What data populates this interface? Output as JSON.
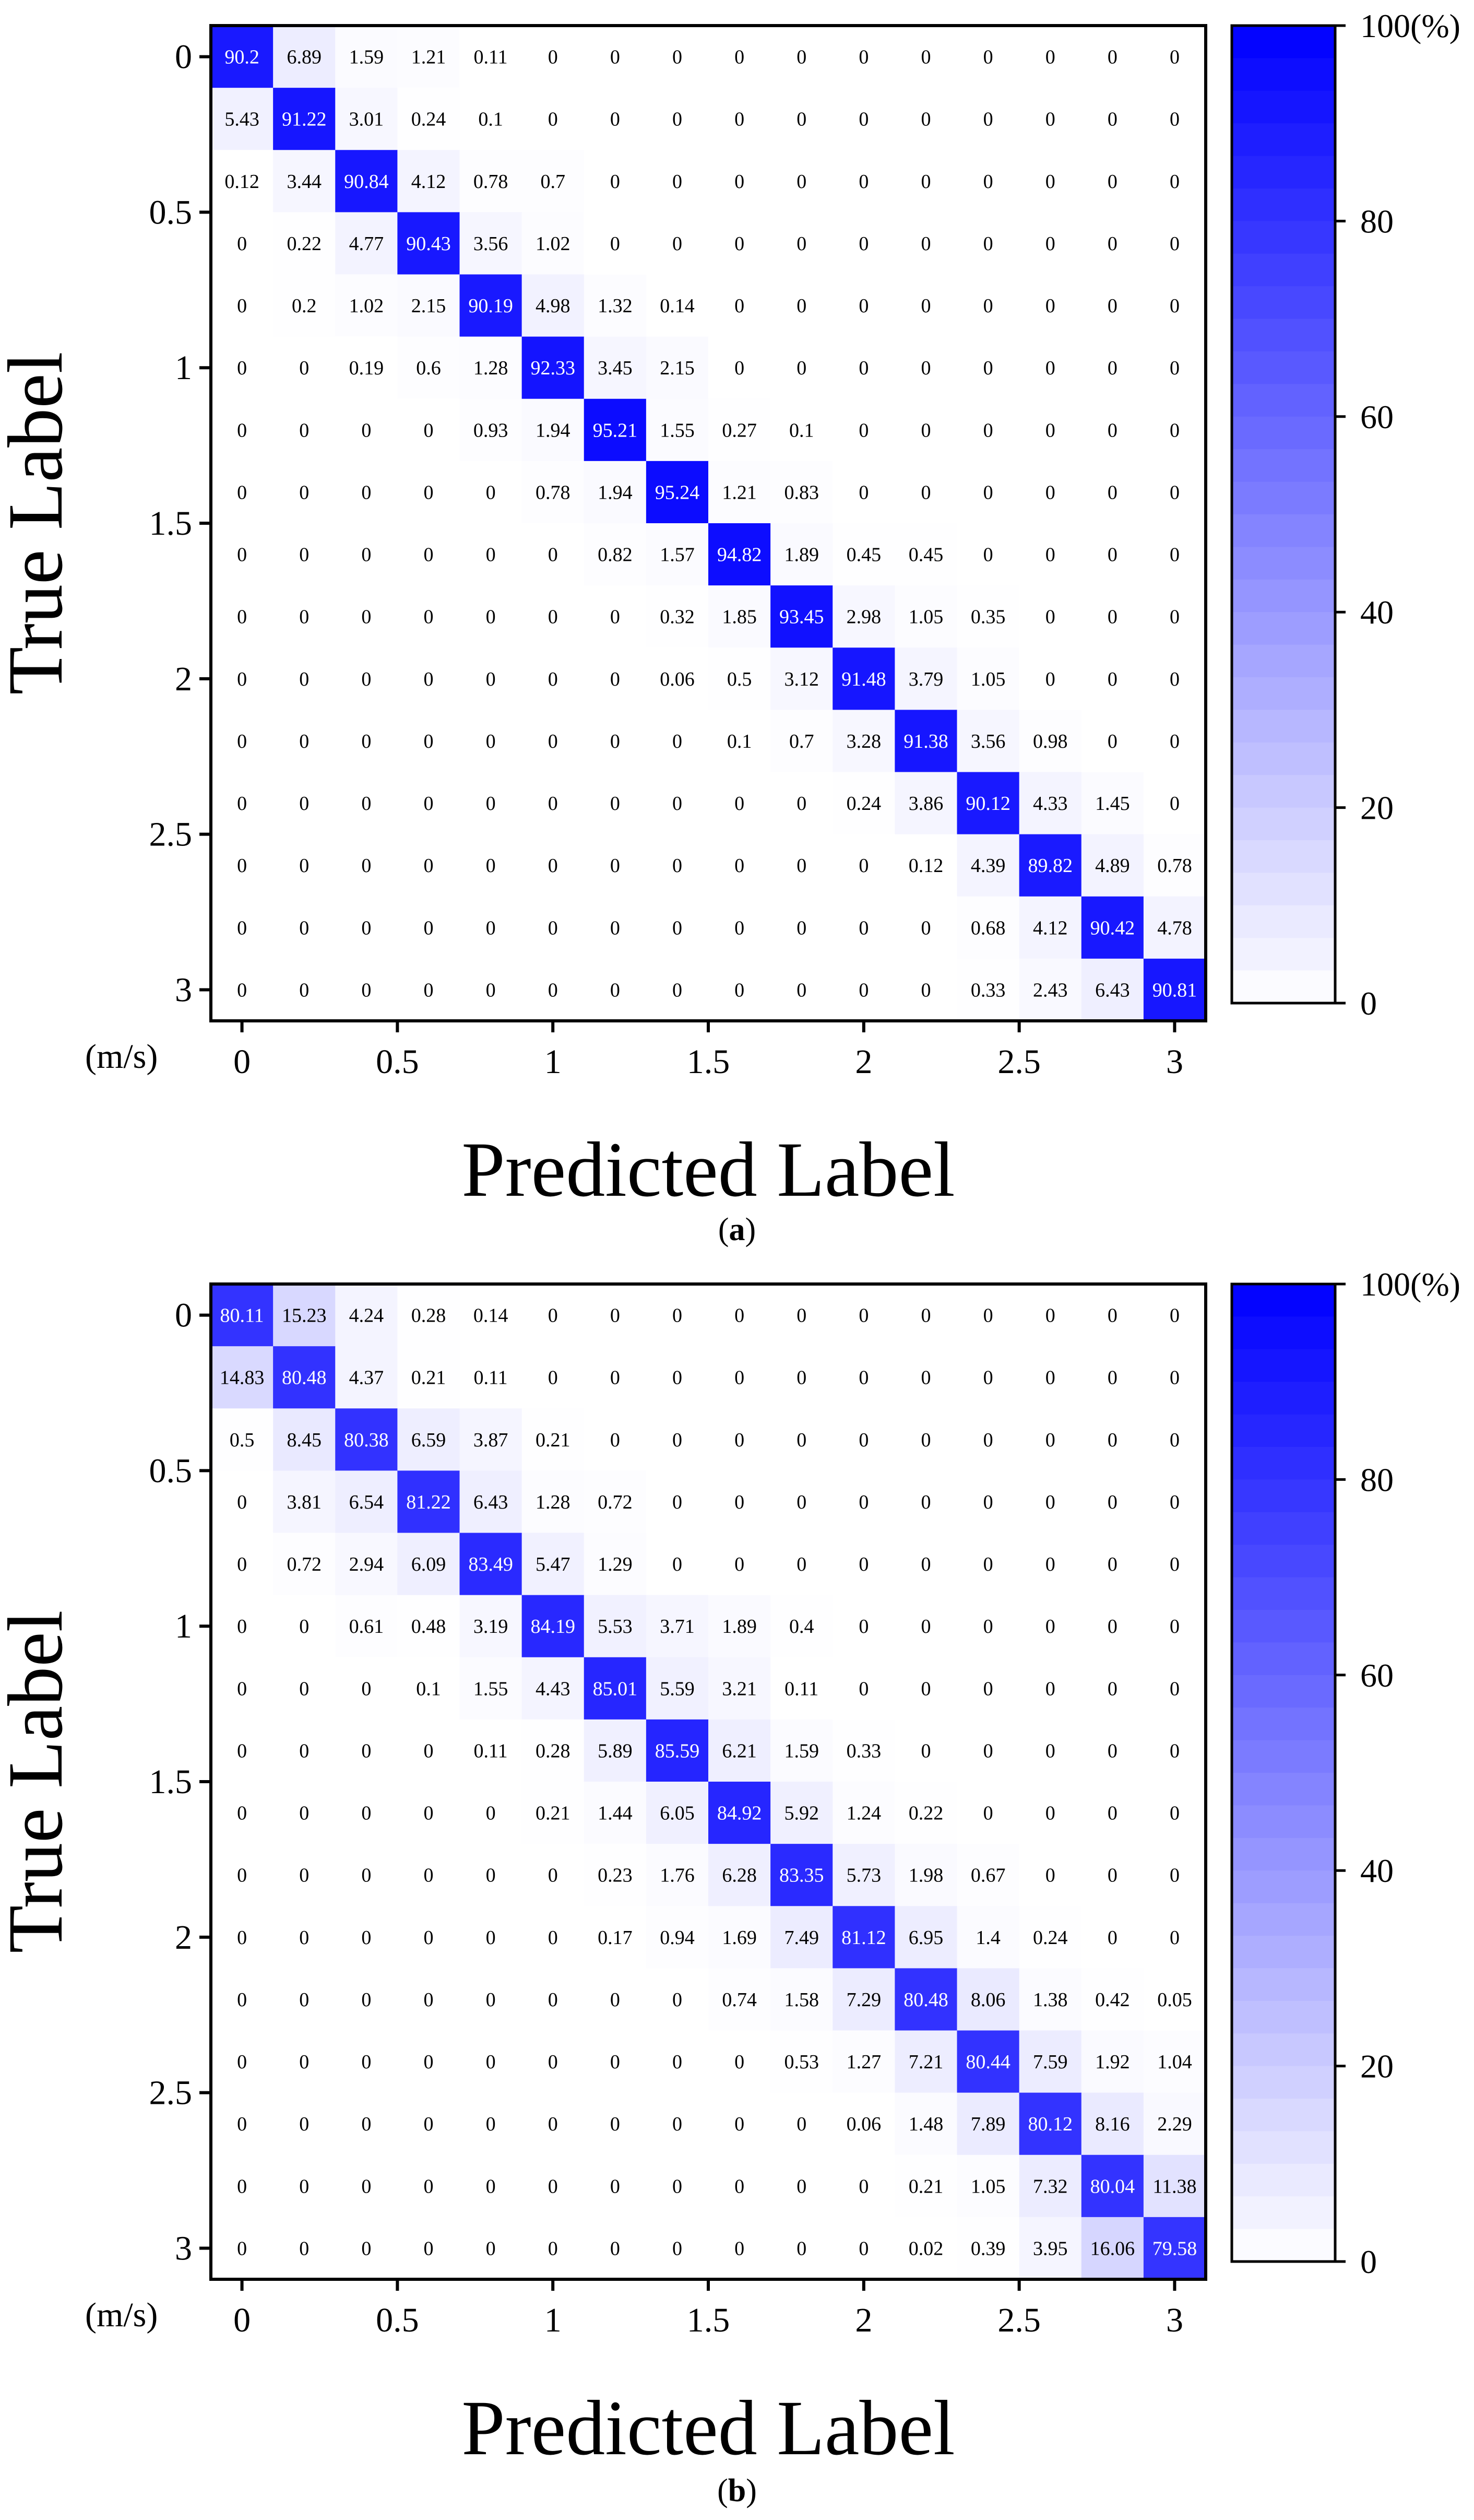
{
  "colors": {
    "cell_max": "#0000ff",
    "cell_min": "#ffffff",
    "text_dark": "#000000",
    "text_light": "#ffffff",
    "frame": "#000000"
  },
  "chart_data": [
    {
      "type": "heatmap",
      "panel_label": "a",
      "caption_open": "(",
      "caption_close": ")",
      "xlabel": "Predicted Label",
      "ylabel": "True Label",
      "unit_label": "(m/s)",
      "tick_labels": [
        "0",
        "0.5",
        "1",
        "1.5",
        "2",
        "2.5",
        "3"
      ],
      "tick_positions": [
        0,
        2.5,
        5,
        7.5,
        10,
        12.5,
        15
      ],
      "colorbar": {
        "range": [
          0,
          100
        ],
        "ticks": [
          "0",
          "20",
          "40",
          "60",
          "80"
        ],
        "tick_values": [
          0,
          20,
          40,
          60,
          80
        ],
        "max_label": "100(%)"
      },
      "matrix": [
        [
          "90.2",
          "6.89",
          "1.59",
          "1.21",
          "0.11",
          "0",
          "0",
          "0",
          "0",
          "0",
          "0",
          "0",
          "0",
          "0",
          "0",
          "0"
        ],
        [
          "5.43",
          "91.22",
          "3.01",
          "0.24",
          "0.1",
          "0",
          "0",
          "0",
          "0",
          "0",
          "0",
          "0",
          "0",
          "0",
          "0",
          "0"
        ],
        [
          "0.12",
          "3.44",
          "90.84",
          "4.12",
          "0.78",
          "0.7",
          "0",
          "0",
          "0",
          "0",
          "0",
          "0",
          "0",
          "0",
          "0",
          "0"
        ],
        [
          "0",
          "0.22",
          "4.77",
          "90.43",
          "3.56",
          "1.02",
          "0",
          "0",
          "0",
          "0",
          "0",
          "0",
          "0",
          "0",
          "0",
          "0"
        ],
        [
          "0",
          "0.2",
          "1.02",
          "2.15",
          "90.19",
          "4.98",
          "1.32",
          "0.14",
          "0",
          "0",
          "0",
          "0",
          "0",
          "0",
          "0",
          "0"
        ],
        [
          "0",
          "0",
          "0.19",
          "0.6",
          "1.28",
          "92.33",
          "3.45",
          "2.15",
          "0",
          "0",
          "0",
          "0",
          "0",
          "0",
          "0",
          "0"
        ],
        [
          "0",
          "0",
          "0",
          "0",
          "0.93",
          "1.94",
          "95.21",
          "1.55",
          "0.27",
          "0.1",
          "0",
          "0",
          "0",
          "0",
          "0",
          "0"
        ],
        [
          "0",
          "0",
          "0",
          "0",
          "0",
          "0.78",
          "1.94",
          "95.24",
          "1.21",
          "0.83",
          "0",
          "0",
          "0",
          "0",
          "0",
          "0"
        ],
        [
          "0",
          "0",
          "0",
          "0",
          "0",
          "0",
          "0.82",
          "1.57",
          "94.82",
          "1.89",
          "0.45",
          "0.45",
          "0",
          "0",
          "0",
          "0"
        ],
        [
          "0",
          "0",
          "0",
          "0",
          "0",
          "0",
          "0",
          "0.32",
          "1.85",
          "93.45",
          "2.98",
          "1.05",
          "0.35",
          "0",
          "0",
          "0"
        ],
        [
          "0",
          "0",
          "0",
          "0",
          "0",
          "0",
          "0",
          "0.06",
          "0.5",
          "3.12",
          "91.48",
          "3.79",
          "1.05",
          "0",
          "0",
          "0"
        ],
        [
          "0",
          "0",
          "0",
          "0",
          "0",
          "0",
          "0",
          "0",
          "0.1",
          "0.7",
          "3.28",
          "91.38",
          "3.56",
          "0.98",
          "0",
          "0"
        ],
        [
          "0",
          "0",
          "0",
          "0",
          "0",
          "0",
          "0",
          "0",
          "0",
          "0",
          "0.24",
          "3.86",
          "90.12",
          "4.33",
          "1.45",
          "0"
        ],
        [
          "0",
          "0",
          "0",
          "0",
          "0",
          "0",
          "0",
          "0",
          "0",
          "0",
          "0",
          "0.12",
          "4.39",
          "89.82",
          "4.89",
          "0.78"
        ],
        [
          "0",
          "0",
          "0",
          "0",
          "0",
          "0",
          "0",
          "0",
          "0",
          "0",
          "0",
          "0",
          "0.68",
          "4.12",
          "90.42",
          "4.78"
        ],
        [
          "0",
          "0",
          "0",
          "0",
          "0",
          "0",
          "0",
          "0",
          "0",
          "0",
          "0",
          "0",
          "0.33",
          "2.43",
          "6.43",
          "90.81"
        ]
      ]
    },
    {
      "type": "heatmap",
      "panel_label": "b",
      "caption_open": "(",
      "caption_close": ")",
      "xlabel": "Predicted Label",
      "ylabel": "True Label",
      "unit_label": "(m/s)",
      "tick_labels": [
        "0",
        "0.5",
        "1",
        "1.5",
        "2",
        "2.5",
        "3"
      ],
      "tick_positions": [
        0,
        2.5,
        5,
        7.5,
        10,
        12.5,
        15
      ],
      "colorbar": {
        "range": [
          0,
          100
        ],
        "ticks": [
          "0",
          "20",
          "40",
          "60",
          "80"
        ],
        "tick_values": [
          0,
          20,
          40,
          60,
          80
        ],
        "max_label": "100(%)"
      },
      "matrix": [
        [
          "80.11",
          "15.23",
          "4.24",
          "0.28",
          "0.14",
          "0",
          "0",
          "0",
          "0",
          "0",
          "0",
          "0",
          "0",
          "0",
          "0",
          "0"
        ],
        [
          "14.83",
          "80.48",
          "4.37",
          "0.21",
          "0.11",
          "0",
          "0",
          "0",
          "0",
          "0",
          "0",
          "0",
          "0",
          "0",
          "0",
          "0"
        ],
        [
          "0.5",
          "8.45",
          "80.38",
          "6.59",
          "3.87",
          "0.21",
          "0",
          "0",
          "0",
          "0",
          "0",
          "0",
          "0",
          "0",
          "0",
          "0"
        ],
        [
          "0",
          "3.81",
          "6.54",
          "81.22",
          "6.43",
          "1.28",
          "0.72",
          "0",
          "0",
          "0",
          "0",
          "0",
          "0",
          "0",
          "0",
          "0"
        ],
        [
          "0",
          "0.72",
          "2.94",
          "6.09",
          "83.49",
          "5.47",
          "1.29",
          "0",
          "0",
          "0",
          "0",
          "0",
          "0",
          "0",
          "0",
          "0"
        ],
        [
          "0",
          "0",
          "0.61",
          "0.48",
          "3.19",
          "84.19",
          "5.53",
          "3.71",
          "1.89",
          "0.4",
          "0",
          "0",
          "0",
          "0",
          "0",
          "0"
        ],
        [
          "0",
          "0",
          "0",
          "0.1",
          "1.55",
          "4.43",
          "85.01",
          "5.59",
          "3.21",
          "0.11",
          "0",
          "0",
          "0",
          "0",
          "0",
          "0"
        ],
        [
          "0",
          "0",
          "0",
          "0",
          "0.11",
          "0.28",
          "5.89",
          "85.59",
          "6.21",
          "1.59",
          "0.33",
          "0",
          "0",
          "0",
          "0",
          "0"
        ],
        [
          "0",
          "0",
          "0",
          "0",
          "0",
          "0.21",
          "1.44",
          "6.05",
          "84.92",
          "5.92",
          "1.24",
          "0.22",
          "0",
          "0",
          "0",
          "0"
        ],
        [
          "0",
          "0",
          "0",
          "0",
          "0",
          "0",
          "0.23",
          "1.76",
          "6.28",
          "83.35",
          "5.73",
          "1.98",
          "0.67",
          "0",
          "0",
          "0"
        ],
        [
          "0",
          "0",
          "0",
          "0",
          "0",
          "0",
          "0.17",
          "0.94",
          "1.69",
          "7.49",
          "81.12",
          "6.95",
          "1.4",
          "0.24",
          "0",
          "0"
        ],
        [
          "0",
          "0",
          "0",
          "0",
          "0",
          "0",
          "0",
          "0",
          "0.74",
          "1.58",
          "7.29",
          "80.48",
          "8.06",
          "1.38",
          "0.42",
          "0.05"
        ],
        [
          "0",
          "0",
          "0",
          "0",
          "0",
          "0",
          "0",
          "0",
          "0",
          "0.53",
          "1.27",
          "7.21",
          "80.44",
          "7.59",
          "1.92",
          "1.04"
        ],
        [
          "0",
          "0",
          "0",
          "0",
          "0",
          "0",
          "0",
          "0",
          "0",
          "0",
          "0.06",
          "1.48",
          "7.89",
          "80.12",
          "8.16",
          "2.29"
        ],
        [
          "0",
          "0",
          "0",
          "0",
          "0",
          "0",
          "0",
          "0",
          "0",
          "0",
          "0",
          "0.21",
          "1.05",
          "7.32",
          "80.04",
          "11.38"
        ],
        [
          "0",
          "0",
          "0",
          "0",
          "0",
          "0",
          "0",
          "0",
          "0",
          "0",
          "0",
          "0.02",
          "0.39",
          "3.95",
          "16.06",
          "79.58"
        ]
      ]
    }
  ]
}
